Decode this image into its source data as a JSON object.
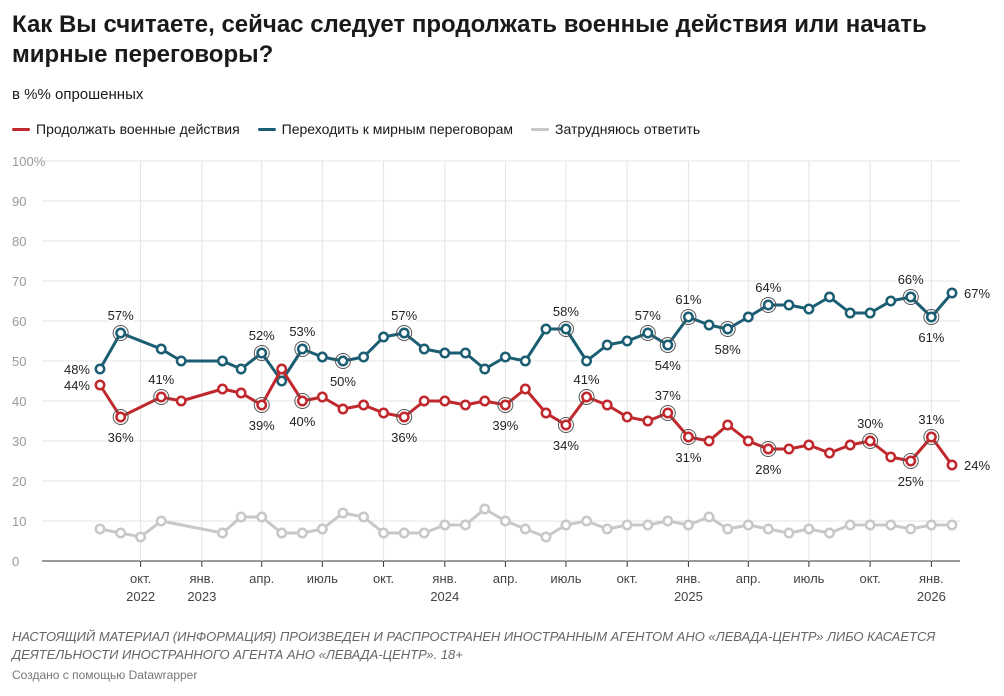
{
  "title": "Как Вы считаете, сейчас следует продолжать военные действия или начать мирные переговоры?",
  "subtitle": "в %% опрошенных",
  "legend": [
    {
      "label": "Продолжать военные действия",
      "color": "#c0282d"
    },
    {
      "label": "Переходить к мирным переговорам",
      "color": "#1b5e73"
    },
    {
      "label": "Затрудняюсь ответить",
      "color": "#c8c8c8"
    }
  ],
  "footnote": "НАСТОЯЩИЙ МАТЕРИАЛ (ИНФОРМАЦИЯ) ПРОИЗВЕДЕН И РАСПРОСТРАНЕН ИНОСТРАННЫМ АГЕНТОМ АНО «ЛЕВАДА-ЦЕНТР» ЛИБО КАСАЕТСЯ ДЕЯТЕЛЬНОСТИ ИНОСТРАННОГО АГЕНТА АНО «ЛЕВАДА-ЦЕНТР». 18+",
  "credit": "Создано с помощью Datawrapper",
  "chart_data": {
    "type": "line",
    "title": "Как Вы считаете, сейчас следует продолжать военные действия или начать мирные переговоры?",
    "subtitle": "в %% опрошенных",
    "ylim": [
      0,
      100
    ],
    "y_ticks": [
      0,
      10,
      20,
      30,
      40,
      50,
      60,
      70,
      80,
      90,
      100
    ],
    "y_tick_labels": [
      "0",
      "10",
      "20",
      "30",
      "40",
      "50",
      "60",
      "70",
      "80",
      "90",
      "100%"
    ],
    "xlim": [
      "2022-08-01",
      "2026-02-01"
    ],
    "x_ticks": [
      {
        "date": "2022-10-01",
        "label": "окт.",
        "year": "2022"
      },
      {
        "date": "2023-01-01",
        "label": "янв.",
        "year": "2023"
      },
      {
        "date": "2023-04-01",
        "label": "апр.",
        "year": ""
      },
      {
        "date": "2023-07-01",
        "label": "июль",
        "year": ""
      },
      {
        "date": "2023-10-01",
        "label": "окт.",
        "year": ""
      },
      {
        "date": "2024-01-01",
        "label": "янв.",
        "year": "2024"
      },
      {
        "date": "2024-04-01",
        "label": "апр.",
        "year": ""
      },
      {
        "date": "2024-07-01",
        "label": "июль",
        "year": ""
      },
      {
        "date": "2024-10-01",
        "label": "окт.",
        "year": ""
      },
      {
        "date": "2025-01-01",
        "label": "янв.",
        "year": "2025"
      },
      {
        "date": "2025-04-01",
        "label": "апр.",
        "year": ""
      },
      {
        "date": "2025-07-01",
        "label": "июль",
        "year": ""
      },
      {
        "date": "2025-10-01",
        "label": "окт.",
        "year": ""
      },
      {
        "date": "2026-01-01",
        "label": "янв.",
        "year": "2026"
      }
    ],
    "grid": true,
    "legend_position": "top-left",
    "series": [
      {
        "name": "Продолжать военные действия",
        "color": "#c0282d",
        "points": [
          {
            "x": "2022-08-01",
            "y": 44,
            "label": "44%",
            "pos": "left",
            "ring": false
          },
          {
            "x": "2022-09-01",
            "y": 36,
            "label": "36%",
            "pos": "below",
            "ring": true
          },
          {
            "x": "2022-11-01",
            "y": 41,
            "label": "41%",
            "pos": "above",
            "ring": true
          },
          {
            "x": "2022-12-01",
            "y": 40
          },
          {
            "x": "2023-02-01",
            "y": 43
          },
          {
            "x": "2023-03-01",
            "y": 42
          },
          {
            "x": "2023-04-01",
            "y": 39,
            "label": "39%",
            "pos": "below",
            "ring": true
          },
          {
            "x": "2023-05-01",
            "y": 48
          },
          {
            "x": "2023-06-01",
            "y": 40,
            "label": "40%",
            "pos": "below",
            "ring": true
          },
          {
            "x": "2023-07-01",
            "y": 41
          },
          {
            "x": "2023-08-01",
            "y": 38
          },
          {
            "x": "2023-09-01",
            "y": 39
          },
          {
            "x": "2023-10-01",
            "y": 37
          },
          {
            "x": "2023-11-01",
            "y": 36,
            "label": "36%",
            "pos": "below",
            "ring": true
          },
          {
            "x": "2023-12-01",
            "y": 40
          },
          {
            "x": "2024-01-01",
            "y": 40
          },
          {
            "x": "2024-02-01",
            "y": 39
          },
          {
            "x": "2024-03-01",
            "y": 40
          },
          {
            "x": "2024-04-01",
            "y": 39,
            "label": "39%",
            "pos": "below",
            "ring": true
          },
          {
            "x": "2024-05-01",
            "y": 43
          },
          {
            "x": "2024-06-01",
            "y": 37
          },
          {
            "x": "2024-07-01",
            "y": 34,
            "label": "34%",
            "pos": "below",
            "ring": true
          },
          {
            "x": "2024-08-01",
            "y": 41,
            "label": "41%",
            "pos": "above",
            "ring": true
          },
          {
            "x": "2024-09-01",
            "y": 39
          },
          {
            "x": "2024-10-01",
            "y": 36
          },
          {
            "x": "2024-11-01",
            "y": 35
          },
          {
            "x": "2024-12-01",
            "y": 37,
            "label": "37%",
            "pos": "above",
            "ring": true
          },
          {
            "x": "2025-01-01",
            "y": 31,
            "label": "31%",
            "pos": "below",
            "ring": true
          },
          {
            "x": "2025-02-01",
            "y": 30
          },
          {
            "x": "2025-03-01",
            "y": 34
          },
          {
            "x": "2025-04-01",
            "y": 30
          },
          {
            "x": "2025-05-01",
            "y": 28,
            "label": "28%",
            "pos": "below",
            "ring": true
          },
          {
            "x": "2025-06-01",
            "y": 28
          },
          {
            "x": "2025-07-01",
            "y": 29
          },
          {
            "x": "2025-08-01",
            "y": 27
          },
          {
            "x": "2025-09-01",
            "y": 29
          },
          {
            "x": "2025-10-01",
            "y": 30,
            "label": "30%",
            "pos": "above",
            "ring": true
          },
          {
            "x": "2025-11-01",
            "y": 26
          },
          {
            "x": "2025-12-01",
            "y": 25,
            "label": "25%",
            "pos": "below",
            "ring": true
          },
          {
            "x": "2026-01-01",
            "y": 31,
            "label": "31%",
            "pos": "above",
            "ring": true
          },
          {
            "x": "2026-02-01",
            "y": 24,
            "label": "24%",
            "pos": "right",
            "ring": false
          }
        ]
      },
      {
        "name": "Переходить к мирным переговорам",
        "color": "#1b5e73",
        "points": [
          {
            "x": "2022-08-01",
            "y": 48,
            "label": "48%",
            "pos": "left",
            "ring": false
          },
          {
            "x": "2022-09-01",
            "y": 57,
            "label": "57%",
            "pos": "above",
            "ring": true
          },
          {
            "x": "2022-11-01",
            "y": 53
          },
          {
            "x": "2022-12-01",
            "y": 50
          },
          {
            "x": "2023-02-01",
            "y": 50
          },
          {
            "x": "2023-03-01",
            "y": 48
          },
          {
            "x": "2023-04-01",
            "y": 52,
            "label": "52%",
            "pos": "above",
            "ring": true
          },
          {
            "x": "2023-05-01",
            "y": 45
          },
          {
            "x": "2023-06-01",
            "y": 53,
            "label": "53%",
            "pos": "above",
            "ring": true
          },
          {
            "x": "2023-07-01",
            "y": 51
          },
          {
            "x": "2023-08-01",
            "y": 50,
            "label": "50%",
            "pos": "below",
            "ring": true
          },
          {
            "x": "2023-09-01",
            "y": 51
          },
          {
            "x": "2023-10-01",
            "y": 56
          },
          {
            "x": "2023-11-01",
            "y": 57,
            "label": "57%",
            "pos": "above",
            "ring": true
          },
          {
            "x": "2023-12-01",
            "y": 53
          },
          {
            "x": "2024-01-01",
            "y": 52
          },
          {
            "x": "2024-02-01",
            "y": 52
          },
          {
            "x": "2024-03-01",
            "y": 48
          },
          {
            "x": "2024-04-01",
            "y": 51
          },
          {
            "x": "2024-05-01",
            "y": 50
          },
          {
            "x": "2024-06-01",
            "y": 58
          },
          {
            "x": "2024-07-01",
            "y": 58,
            "label": "58%",
            "pos": "above",
            "ring": true
          },
          {
            "x": "2024-08-01",
            "y": 50
          },
          {
            "x": "2024-09-01",
            "y": 54
          },
          {
            "x": "2024-10-01",
            "y": 55
          },
          {
            "x": "2024-11-01",
            "y": 57,
            "label": "57%",
            "pos": "above",
            "ring": true
          },
          {
            "x": "2024-12-01",
            "y": 54,
            "label": "54%",
            "pos": "below",
            "ring": true
          },
          {
            "x": "2025-01-01",
            "y": 61,
            "label": "61%",
            "pos": "above",
            "ring": true
          },
          {
            "x": "2025-02-01",
            "y": 59
          },
          {
            "x": "2025-03-01",
            "y": 58,
            "label": "58%",
            "pos": "below",
            "ring": true
          },
          {
            "x": "2025-04-01",
            "y": 61
          },
          {
            "x": "2025-05-01",
            "y": 64,
            "label": "64%",
            "pos": "above",
            "ring": true
          },
          {
            "x": "2025-06-01",
            "y": 64
          },
          {
            "x": "2025-07-01",
            "y": 63
          },
          {
            "x": "2025-08-01",
            "y": 66
          },
          {
            "x": "2025-09-01",
            "y": 62
          },
          {
            "x": "2025-10-01",
            "y": 62
          },
          {
            "x": "2025-11-01",
            "y": 65
          },
          {
            "x": "2025-12-01",
            "y": 66,
            "label": "66%",
            "pos": "above",
            "ring": true
          },
          {
            "x": "2026-01-01",
            "y": 61,
            "label": "61%",
            "pos": "below",
            "ring": true
          },
          {
            "x": "2026-02-01",
            "y": 67,
            "label": "67%",
            "pos": "right",
            "ring": false
          }
        ]
      },
      {
        "name": "Затрудняюсь ответить",
        "color": "#c8c8c8",
        "points": [
          {
            "x": "2022-08-01",
            "y": 8
          },
          {
            "x": "2022-09-01",
            "y": 7
          },
          {
            "x": "2022-10-01",
            "y": 6
          },
          {
            "x": "2022-11-01",
            "y": 10
          },
          {
            "x": "2023-02-01",
            "y": 7
          },
          {
            "x": "2023-03-01",
            "y": 11
          },
          {
            "x": "2023-04-01",
            "y": 11
          },
          {
            "x": "2023-05-01",
            "y": 7
          },
          {
            "x": "2023-06-01",
            "y": 7
          },
          {
            "x": "2023-07-01",
            "y": 8
          },
          {
            "x": "2023-08-01",
            "y": 12
          },
          {
            "x": "2023-09-01",
            "y": 11
          },
          {
            "x": "2023-10-01",
            "y": 7
          },
          {
            "x": "2023-11-01",
            "y": 7
          },
          {
            "x": "2023-12-01",
            "y": 7
          },
          {
            "x": "2024-01-01",
            "y": 9
          },
          {
            "x": "2024-02-01",
            "y": 9
          },
          {
            "x": "2024-03-01",
            "y": 13
          },
          {
            "x": "2024-04-01",
            "y": 10
          },
          {
            "x": "2024-05-01",
            "y": 8
          },
          {
            "x": "2024-06-01",
            "y": 6
          },
          {
            "x": "2024-07-01",
            "y": 9
          },
          {
            "x": "2024-08-01",
            "y": 10
          },
          {
            "x": "2024-09-01",
            "y": 8
          },
          {
            "x": "2024-10-01",
            "y": 9
          },
          {
            "x": "2024-11-01",
            "y": 9
          },
          {
            "x": "2024-12-01",
            "y": 10
          },
          {
            "x": "2025-01-01",
            "y": 9
          },
          {
            "x": "2025-02-01",
            "y": 11
          },
          {
            "x": "2025-03-01",
            "y": 8
          },
          {
            "x": "2025-04-01",
            "y": 9
          },
          {
            "x": "2025-05-01",
            "y": 8
          },
          {
            "x": "2025-06-01",
            "y": 7
          },
          {
            "x": "2025-07-01",
            "y": 8
          },
          {
            "x": "2025-08-01",
            "y": 7
          },
          {
            "x": "2025-09-01",
            "y": 9
          },
          {
            "x": "2025-10-01",
            "y": 9
          },
          {
            "x": "2025-11-01",
            "y": 9
          },
          {
            "x": "2025-12-01",
            "y": 8
          },
          {
            "x": "2026-01-01",
            "y": 9
          },
          {
            "x": "2026-02-01",
            "y": 9
          }
        ]
      }
    ]
  }
}
